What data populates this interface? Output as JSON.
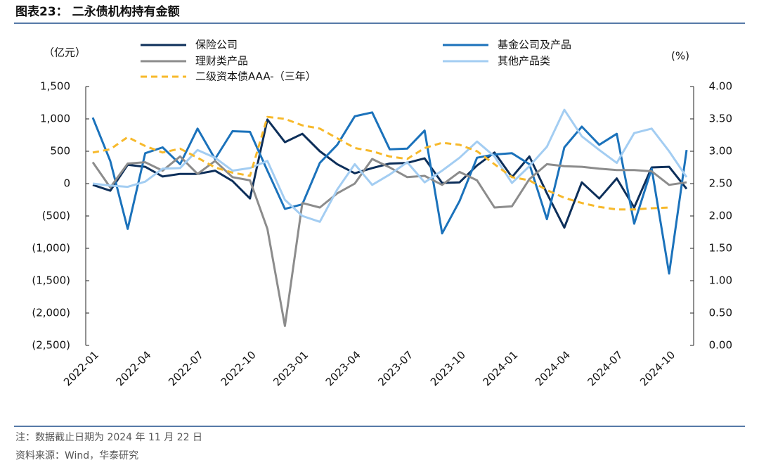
{
  "header": {
    "title": "图表23：  二永债机构持有金额"
  },
  "chart_data": {
    "type": "line",
    "y_label": "（亿元）",
    "y2_label": "(%)",
    "categories": [
      "2022-01",
      null,
      null,
      "2022-04",
      null,
      null,
      "2022-07",
      null,
      null,
      "2022-10",
      null,
      null,
      "2023-01",
      null,
      null,
      "2023-04",
      null,
      null,
      "2023-07",
      null,
      null,
      "2023-10",
      null,
      null,
      "2024-01",
      null,
      null,
      "2024-04",
      null,
      null,
      "2024-07",
      null,
      null,
      "2024-10",
      null
    ],
    "series": [
      {
        "name": "保险公司",
        "color": "#0d2f5a",
        "values": [
          -20,
          -110,
          290,
          260,
          110,
          150,
          150,
          200,
          40,
          -230,
          990,
          640,
          770,
          500,
          300,
          160,
          240,
          310,
          320,
          390,
          10,
          20,
          280,
          480,
          100,
          420,
          -150,
          -680,
          20,
          -230,
          80,
          -370,
          250,
          260,
          -80
        ]
      },
      {
        "name": "基金公司及产品",
        "color": "#1b72bb",
        "values": [
          1020,
          350,
          -700,
          470,
          560,
          300,
          850,
          380,
          810,
          800,
          200,
          -390,
          -320,
          320,
          600,
          1040,
          1100,
          530,
          540,
          820,
          -770,
          -270,
          400,
          450,
          470,
          300,
          -550,
          560,
          880,
          600,
          770,
          -620,
          230,
          -1390,
          520
        ]
      },
      {
        "name": "理财类产品",
        "color": "#8c8c8c",
        "values": [
          330,
          -60,
          310,
          330,
          200,
          420,
          150,
          350,
          100,
          50,
          -700,
          -2200,
          -300,
          -370,
          -150,
          0,
          380,
          250,
          100,
          120,
          -20,
          180,
          50,
          -370,
          -350,
          70,
          300,
          270,
          260,
          230,
          210,
          210,
          190,
          -20,
          20
        ]
      },
      {
        "name": "其他产品类",
        "color": "#a3cdf2",
        "values": [
          0,
          -30,
          -50,
          30,
          230,
          240,
          520,
          400,
          200,
          240,
          350,
          -250,
          -500,
          -590,
          -90,
          300,
          -20,
          140,
          330,
          20,
          200,
          400,
          650,
          420,
          10,
          270,
          570,
          1140,
          730,
          520,
          320,
          780,
          850,
          500,
          100
        ]
      },
      {
        "name": "二级资本债AAA-（三年）",
        "color": "#f7b92b",
        "dashed": true,
        "axis": "y2",
        "values": [
          2.98,
          3.03,
          3.22,
          3.08,
          2.98,
          3.04,
          2.9,
          2.75,
          2.67,
          2.62,
          3.53,
          3.5,
          3.4,
          3.35,
          3.2,
          3.05,
          3.0,
          2.92,
          2.88,
          3.05,
          3.13,
          3.1,
          3.0,
          2.8,
          2.6,
          2.55,
          2.4,
          2.28,
          2.2,
          2.14,
          2.1,
          2.1,
          2.12,
          2.13,
          null
        ]
      }
    ],
    "ylim": [
      -2500,
      1500
    ],
    "yticks": [
      {
        "value": -2500,
        "label": "(2,500)"
      },
      {
        "value": -2000,
        "label": "(2,000)"
      },
      {
        "value": -1500,
        "label": "(1,500)"
      },
      {
        "value": -1000,
        "label": "(1,000)"
      },
      {
        "value": -500,
        "label": "(500)"
      },
      0,
      500,
      {
        "value": 1000,
        "label": "1,000"
      },
      {
        "value": 1500,
        "label": "1,500"
      }
    ],
    "y2lim": [
      0,
      4
    ],
    "y2ticks": [
      {
        "value": 0,
        "label": "0.00"
      },
      {
        "value": 0.5,
        "label": "0.50"
      },
      {
        "value": 1,
        "label": "1.00"
      },
      {
        "value": 1.5,
        "label": "1.50"
      },
      {
        "value": 2,
        "label": "2.00"
      },
      {
        "value": 2.5,
        "label": "2.50"
      },
      {
        "value": 3,
        "label": "3.00"
      },
      {
        "value": 3.5,
        "label": "3.50"
      },
      {
        "value": 4,
        "label": "4.00"
      }
    ],
    "grid": false
  },
  "footer": {
    "note": "注：数据截止日期为 2024 年 11 月 22 日",
    "source": "资料来源：Wind，华泰研究"
  }
}
